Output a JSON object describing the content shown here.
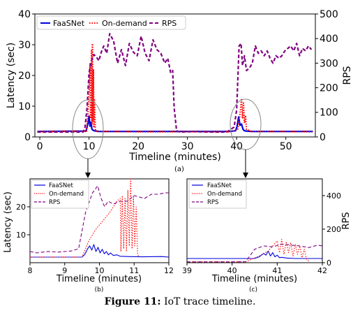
{
  "caption": {
    "label": "Figure 11:",
    "text": "IoT trace timeline."
  },
  "colors": {
    "faasnet": "#0000dd",
    "ondemand": "#ff0000",
    "rps": "#800080",
    "callout": "#888888"
  },
  "chart_data": [
    {
      "id": "a",
      "type": "line",
      "panel_label": "(a)",
      "xlabel": "Timeline (minutes)",
      "ylabel": "Latency (sec)",
      "y2label": "RPS",
      "xlim": [
        -1,
        56
      ],
      "ylim": [
        0,
        40
      ],
      "y2lim": [
        0,
        500
      ],
      "xticks": [
        0,
        10,
        20,
        30,
        40,
        50
      ],
      "yticks": [
        0,
        10,
        20,
        30,
        40
      ],
      "y2ticks": [
        0,
        100,
        200,
        300,
        400,
        500
      ],
      "legend": "top-left, horizontal",
      "series": [
        {
          "name": "FaaSNet",
          "axis": "left",
          "style": "solid",
          "color": "#0000dd",
          "x": [
            -0.5,
            9.4,
            9.6,
            9.8,
            10.0,
            10.2,
            10.4,
            10.6,
            11.0,
            11.5,
            12.0,
            13.0,
            25.0,
            38.5,
            39.8,
            40.1,
            40.4,
            40.7,
            41.0,
            41.3,
            41.6,
            42.0,
            43.0,
            55.5
          ],
          "y": [
            1.8,
            1.9,
            3.2,
            4.5,
            6.8,
            3.5,
            4.8,
            2.5,
            2.0,
            1.9,
            1.8,
            1.8,
            1.8,
            1.8,
            2.0,
            3.5,
            6.5,
            3.8,
            4.2,
            2.5,
            2.0,
            1.9,
            1.8,
            1.8
          ]
        },
        {
          "name": "On-demand",
          "axis": "left",
          "style": "dotted",
          "color": "#ff0000",
          "x": [
            -0.5,
            9.5,
            9.8,
            10.0,
            10.2,
            10.35,
            10.5,
            10.6,
            10.7,
            10.8,
            10.9,
            11.0,
            11.1,
            11.3,
            11.6,
            20.0,
            39.0,
            40.2,
            40.5,
            40.8,
            41.0,
            41.2,
            41.4,
            41.6,
            41.8,
            42.0,
            43.0,
            55.5
          ],
          "y": [
            1.7,
            1.9,
            8.0,
            14.0,
            24.0,
            6.0,
            28.0,
            4.0,
            30.0,
            5.0,
            22.0,
            3.0,
            12.0,
            2.2,
            1.8,
            1.7,
            1.7,
            2.5,
            5.0,
            9.0,
            12.5,
            6.0,
            11.0,
            4.5,
            7.0,
            2.5,
            1.8,
            1.7
          ]
        },
        {
          "name": "RPS",
          "axis": "right",
          "style": "dashed",
          "color": "#800080",
          "x": [
            -0.5,
            8.8,
            9.2,
            9.6,
            10.0,
            10.5,
            11.0,
            11.5,
            12.0,
            12.5,
            13.0,
            13.6,
            14.2,
            15.0,
            15.8,
            16.6,
            17.4,
            18.2,
            19.0,
            19.8,
            20.6,
            21.4,
            22.2,
            23.0,
            23.8,
            24.6,
            25.4,
            26.0,
            26.6,
            27.0,
            27.3,
            27.8,
            28.5,
            31.0,
            35.0,
            38.0,
            39.5,
            40.0,
            40.5,
            40.9,
            41.2,
            41.6,
            42.0,
            42.6,
            43.2,
            43.8,
            44.4,
            45.0,
            45.6,
            46.2,
            46.8,
            47.4,
            48.0,
            48.6,
            49.2,
            49.8,
            50.4,
            51.0,
            51.6,
            52.2,
            52.8,
            53.4,
            54.0,
            54.6,
            55.2
          ],
          "y": [
            20,
            20,
            40,
            120,
            260,
            310,
            335,
            325,
            310,
            345,
            370,
            340,
            420,
            390,
            300,
            355,
            290,
            380,
            345,
            330,
            410,
            340,
            310,
            395,
            355,
            340,
            300,
            320,
            260,
            270,
            120,
            25,
            20,
            22,
            20,
            20,
            40,
            110,
            370,
            380,
            290,
            330,
            270,
            280,
            300,
            370,
            340,
            350,
            330,
            350,
            320,
            300,
            330,
            320,
            330,
            350,
            360,
            370,
            350,
            380,
            330,
            360,
            350,
            370,
            355
          ]
        }
      ]
    },
    {
      "id": "b",
      "type": "line",
      "panel_label": "(b)",
      "xlabel": "Timeline (minutes)",
      "ylabel": "Latency (sec)",
      "xlim": [
        8,
        12
      ],
      "ylim": [
        0,
        30
      ],
      "xticks": [
        8,
        9,
        10,
        11,
        12
      ],
      "yticks": [
        10,
        20
      ],
      "legend": "top-left",
      "series": [
        {
          "name": "FaaSNet",
          "axis": "left",
          "style": "solid",
          "color": "#0000dd",
          "x": [
            8.0,
            9.5,
            9.58,
            9.66,
            9.72,
            9.78,
            9.84,
            9.9,
            9.96,
            10.02,
            10.08,
            10.14,
            10.2,
            10.26,
            10.32,
            10.4,
            10.5,
            10.6,
            10.8,
            11.2,
            11.8,
            12.0
          ],
          "y": [
            2.0,
            2.0,
            3.0,
            5.0,
            6.0,
            4.5,
            6.5,
            4.0,
            5.5,
            3.5,
            4.8,
            3.2,
            4.0,
            2.8,
            3.5,
            2.6,
            2.8,
            2.3,
            2.2,
            2.1,
            2.2,
            2.0
          ]
        },
        {
          "name": "On-demand",
          "axis": "left",
          "style": "dotted",
          "color": "#ff0000",
          "x": [
            8.0,
            9.5,
            9.7,
            9.9,
            10.1,
            10.3,
            10.5,
            10.6,
            10.62,
            10.66,
            10.7,
            10.74,
            10.78,
            10.82,
            10.86,
            10.9,
            10.94,
            10.98,
            11.02,
            11.06,
            11.1,
            11.14
          ],
          "y": [
            2.0,
            2.0,
            8.0,
            12.0,
            15.0,
            18.0,
            22.0,
            23.0,
            4.0,
            24.0,
            5.0,
            23.0,
            4.0,
            26.0,
            6.0,
            30.0,
            5.0,
            24.0,
            6.0,
            20.0,
            3.0,
            2.0
          ]
        },
        {
          "name": "RPS",
          "axis": "left",
          "style": "dashed",
          "color": "#800080",
          "x": [
            8.0,
            8.2,
            8.5,
            8.8,
            9.0,
            9.2,
            9.4,
            9.6,
            9.8,
            9.95,
            10.05,
            10.15,
            10.25,
            10.4,
            10.6,
            10.8,
            11.0,
            11.3,
            11.5,
            11.7,
            11.9,
            12.0
          ],
          "y": [
            4.0,
            3.5,
            4.0,
            3.8,
            4.0,
            4.2,
            5.0,
            18.0,
            25.0,
            27.5,
            23.0,
            20.0,
            22.0,
            21.0,
            22.0,
            22.0,
            24.0,
            23.0,
            24.5,
            24.5,
            25.0,
            25.0
          ]
        }
      ]
    },
    {
      "id": "c",
      "type": "line",
      "panel_label": "(c)",
      "xlabel": "Timeline (minutes)",
      "y2label": "RPS",
      "xlim": [
        39,
        42
      ],
      "y2lim": [
        0,
        500
      ],
      "xticks": [
        39,
        40,
        41,
        42
      ],
      "y2ticks": [
        0,
        200,
        400
      ],
      "legend": "top-left",
      "series": [
        {
          "name": "FaaSNet",
          "axis": "right",
          "style": "solid",
          "color": "#0000dd",
          "x": [
            39.0,
            40.5,
            40.6,
            40.7,
            40.75,
            40.8,
            40.85,
            40.9,
            40.95,
            41.0,
            41.05,
            41.1,
            41.2,
            41.4,
            41.7,
            42.0
          ],
          "y": [
            25,
            25,
            35,
            55,
            45,
            70,
            40,
            60,
            35,
            45,
            30,
            32,
            28,
            25,
            25,
            25
          ]
        },
        {
          "name": "On-demand",
          "axis": "right",
          "style": "dotted",
          "color": "#ff0000",
          "x": [
            39.0,
            40.3,
            40.6,
            40.8,
            40.9,
            41.0,
            41.05,
            41.1,
            41.15,
            41.2,
            41.25,
            41.3,
            41.35,
            41.4,
            41.45,
            41.5,
            41.55,
            41.6,
            41.65,
            41.7
          ],
          "y": [
            5,
            5,
            40,
            70,
            100,
            130,
            60,
            140,
            50,
            125,
            60,
            120,
            40,
            110,
            50,
            100,
            30,
            80,
            20,
            10
          ]
        },
        {
          "name": "RPS",
          "axis": "right",
          "style": "dashed",
          "color": "#800080",
          "x": [
            39.0,
            39.5,
            40.0,
            40.3,
            40.5,
            40.7,
            40.9,
            41.1,
            41.3,
            41.5,
            41.7,
            41.9,
            42.0
          ],
          "y": [
            5,
            5,
            5,
            6,
            80,
            100,
            95,
            110,
            105,
            100,
            90,
            105,
            100
          ]
        }
      ]
    }
  ]
}
